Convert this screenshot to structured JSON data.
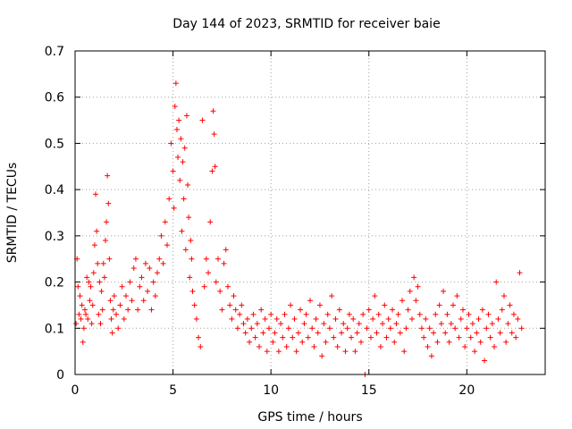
{
  "chart_data": {
    "type": "scatter",
    "title": "Day 144 of 2023, SRMTID for receiver baie",
    "xlabel": "GPS time / hours",
    "ylabel": "SRMTID / TECUs",
    "xlim": [
      0,
      24
    ],
    "ylim": [
      0,
      0.7
    ],
    "xticks": [
      0,
      5,
      10,
      15,
      20
    ],
    "yticks": [
      0,
      0.1,
      0.2,
      0.3,
      0.4,
      0.5,
      0.6,
      0.7
    ],
    "xtick_labels": [
      "0",
      "5",
      "10",
      "15",
      "20"
    ],
    "ytick_labels": [
      "0",
      "0.1",
      "0.2",
      "0.3",
      "0.4",
      "0.5",
      "0.6",
      "0.7"
    ],
    "grid": true,
    "marker": "+",
    "color": "#ff0000",
    "series": [
      {
        "name": "SRMTID",
        "points": [
          [
            0.05,
            0.11
          ],
          [
            0.1,
            0.25
          ],
          [
            0.15,
            0.19
          ],
          [
            0.2,
            0.13
          ],
          [
            0.25,
            0.17
          ],
          [
            0.3,
            0.12
          ],
          [
            0.35,
            0.15
          ],
          [
            0.4,
            0.07
          ],
          [
            0.45,
            0.1
          ],
          [
            0.5,
            0.14
          ],
          [
            0.55,
            0.13
          ],
          [
            0.6,
            0.21
          ],
          [
            0.65,
            0.12
          ],
          [
            0.7,
            0.2
          ],
          [
            0.75,
            0.16
          ],
          [
            0.8,
            0.19
          ],
          [
            0.85,
            0.11
          ],
          [
            0.9,
            0.15
          ],
          [
            0.95,
            0.22
          ],
          [
            1.0,
            0.28
          ],
          [
            1.05,
            0.39
          ],
          [
            1.1,
            0.31
          ],
          [
            1.15,
            0.24
          ],
          [
            1.2,
            0.13
          ],
          [
            1.25,
            0.2
          ],
          [
            1.3,
            0.11
          ],
          [
            1.35,
            0.18
          ],
          [
            1.4,
            0.14
          ],
          [
            1.45,
            0.24
          ],
          [
            1.5,
            0.21
          ],
          [
            1.55,
            0.29
          ],
          [
            1.6,
            0.33
          ],
          [
            1.65,
            0.43
          ],
          [
            1.7,
            0.37
          ],
          [
            1.75,
            0.25
          ],
          [
            1.8,
            0.16
          ],
          [
            1.85,
            0.12
          ],
          [
            1.9,
            0.09
          ],
          [
            1.95,
            0.14
          ],
          [
            2.0,
            0.17
          ],
          [
            2.1,
            0.13
          ],
          [
            2.2,
            0.1
          ],
          [
            2.3,
            0.15
          ],
          [
            2.4,
            0.19
          ],
          [
            2.5,
            0.12
          ],
          [
            2.6,
            0.17
          ],
          [
            2.7,
            0.14
          ],
          [
            2.8,
            0.2
          ],
          [
            2.9,
            0.16
          ],
          [
            3.0,
            0.23
          ],
          [
            3.1,
            0.25
          ],
          [
            3.2,
            0.14
          ],
          [
            3.3,
            0.19
          ],
          [
            3.4,
            0.21
          ],
          [
            3.5,
            0.16
          ],
          [
            3.6,
            0.24
          ],
          [
            3.7,
            0.18
          ],
          [
            3.8,
            0.23
          ],
          [
            3.9,
            0.14
          ],
          [
            4.0,
            0.2
          ],
          [
            4.1,
            0.17
          ],
          [
            4.2,
            0.22
          ],
          [
            4.3,
            0.25
          ],
          [
            4.4,
            0.3
          ],
          [
            4.5,
            0.24
          ],
          [
            4.6,
            0.33
          ],
          [
            4.7,
            0.28
          ],
          [
            4.8,
            0.38
          ],
          [
            4.9,
            0.5
          ],
          [
            5.0,
            0.44
          ],
          [
            5.05,
            0.36
          ],
          [
            5.1,
            0.58
          ],
          [
            5.15,
            0.63
          ],
          [
            5.2,
            0.53
          ],
          [
            5.25,
            0.47
          ],
          [
            5.3,
            0.55
          ],
          [
            5.35,
            0.42
          ],
          [
            5.4,
            0.51
          ],
          [
            5.45,
            0.31
          ],
          [
            5.5,
            0.46
          ],
          [
            5.55,
            0.38
          ],
          [
            5.6,
            0.49
          ],
          [
            5.65,
            0.27
          ],
          [
            5.7,
            0.56
          ],
          [
            5.75,
            0.41
          ],
          [
            5.8,
            0.34
          ],
          [
            5.85,
            0.21
          ],
          [
            5.9,
            0.29
          ],
          [
            5.95,
            0.25
          ],
          [
            6.0,
            0.18
          ],
          [
            6.1,
            0.15
          ],
          [
            6.2,
            0.12
          ],
          [
            6.3,
            0.08
          ],
          [
            6.4,
            0.06
          ],
          [
            6.5,
            0.55
          ],
          [
            6.6,
            0.19
          ],
          [
            6.7,
            0.25
          ],
          [
            6.8,
            0.22
          ],
          [
            6.9,
            0.33
          ],
          [
            7.0,
            0.44
          ],
          [
            7.05,
            0.57
          ],
          [
            7.1,
            0.52
          ],
          [
            7.15,
            0.45
          ],
          [
            7.2,
            0.2
          ],
          [
            7.3,
            0.25
          ],
          [
            7.4,
            0.18
          ],
          [
            7.5,
            0.14
          ],
          [
            7.6,
            0.24
          ],
          [
            7.7,
            0.27
          ],
          [
            7.8,
            0.19
          ],
          [
            7.9,
            0.15
          ],
          [
            8.0,
            0.12
          ],
          [
            8.1,
            0.17
          ],
          [
            8.2,
            0.14
          ],
          [
            8.3,
            0.1
          ],
          [
            8.4,
            0.13
          ],
          [
            8.5,
            0.15
          ],
          [
            8.6,
            0.11
          ],
          [
            8.7,
            0.09
          ],
          [
            8.8,
            0.12
          ],
          [
            8.9,
            0.07
          ],
          [
            9.0,
            0.1
          ],
          [
            9.1,
            0.13
          ],
          [
            9.2,
            0.08
          ],
          [
            9.3,
            0.11
          ],
          [
            9.4,
            0.06
          ],
          [
            9.5,
            0.14
          ],
          [
            9.6,
            0.09
          ],
          [
            9.7,
            0.12
          ],
          [
            9.8,
            0.05
          ],
          [
            9.9,
            0.1
          ],
          [
            10.0,
            0.13
          ],
          [
            10.1,
            0.07
          ],
          [
            10.2,
            0.09
          ],
          [
            10.3,
            0.12
          ],
          [
            10.4,
            0.05
          ],
          [
            10.5,
            0.11
          ],
          [
            10.6,
            0.08
          ],
          [
            10.7,
            0.13
          ],
          [
            10.8,
            0.06
          ],
          [
            10.9,
            0.1
          ],
          [
            11.0,
            0.15
          ],
          [
            11.1,
            0.08
          ],
          [
            11.2,
            0.12
          ],
          [
            11.3,
            0.05
          ],
          [
            11.4,
            0.09
          ],
          [
            11.5,
            0.14
          ],
          [
            11.6,
            0.07
          ],
          [
            11.7,
            0.11
          ],
          [
            11.8,
            0.13
          ],
          [
            11.9,
            0.08
          ],
          [
            12.0,
            0.16
          ],
          [
            12.1,
            0.1
          ],
          [
            12.2,
            0.06
          ],
          [
            12.3,
            0.12
          ],
          [
            12.4,
            0.09
          ],
          [
            12.5,
            0.15
          ],
          [
            12.6,
            0.04
          ],
          [
            12.7,
            0.11
          ],
          [
            12.8,
            0.07
          ],
          [
            12.9,
            0.13
          ],
          [
            13.0,
            0.1
          ],
          [
            13.1,
            0.17
          ],
          [
            13.2,
            0.08
          ],
          [
            13.3,
            0.12
          ],
          [
            13.4,
            0.06
          ],
          [
            13.5,
            0.14
          ],
          [
            13.6,
            0.09
          ],
          [
            13.7,
            0.11
          ],
          [
            13.8,
            0.05
          ],
          [
            13.9,
            0.1
          ],
          [
            14.0,
            0.13
          ],
          [
            14.1,
            0.08
          ],
          [
            14.2,
            0.12
          ],
          [
            14.3,
            0.05
          ],
          [
            14.4,
            0.09
          ],
          [
            14.5,
            0.11
          ],
          [
            14.6,
            0.07
          ],
          [
            14.7,
            0.13
          ],
          [
            14.8,
            0.0
          ],
          [
            14.9,
            0.1
          ],
          [
            15.0,
            0.14
          ],
          [
            15.1,
            0.08
          ],
          [
            15.2,
            0.12
          ],
          [
            15.3,
            0.17
          ],
          [
            15.4,
            0.09
          ],
          [
            15.5,
            0.13
          ],
          [
            15.6,
            0.06
          ],
          [
            15.7,
            0.11
          ],
          [
            15.8,
            0.15
          ],
          [
            15.9,
            0.08
          ],
          [
            16.0,
            0.12
          ],
          [
            16.1,
            0.1
          ],
          [
            16.2,
            0.14
          ],
          [
            16.3,
            0.07
          ],
          [
            16.4,
            0.11
          ],
          [
            16.5,
            0.13
          ],
          [
            16.6,
            0.09
          ],
          [
            16.7,
            0.16
          ],
          [
            16.8,
            0.05
          ],
          [
            16.9,
            0.1
          ],
          [
            17.0,
            0.14
          ],
          [
            17.1,
            0.18
          ],
          [
            17.2,
            0.12
          ],
          [
            17.3,
            0.21
          ],
          [
            17.4,
            0.16
          ],
          [
            17.5,
            0.19
          ],
          [
            17.6,
            0.13
          ],
          [
            17.7,
            0.1
          ],
          [
            17.8,
            0.08
          ],
          [
            17.9,
            0.12
          ],
          [
            18.0,
            0.06
          ],
          [
            18.1,
            0.1
          ],
          [
            18.2,
            0.04
          ],
          [
            18.3,
            0.09
          ],
          [
            18.4,
            0.13
          ],
          [
            18.5,
            0.07
          ],
          [
            18.6,
            0.15
          ],
          [
            18.7,
            0.11
          ],
          [
            18.8,
            0.18
          ],
          [
            18.9,
            0.09
          ],
          [
            19.0,
            0.13
          ],
          [
            19.1,
            0.07
          ],
          [
            19.2,
            0.11
          ],
          [
            19.3,
            0.15
          ],
          [
            19.4,
            0.1
          ],
          [
            19.5,
            0.17
          ],
          [
            19.6,
            0.08
          ],
          [
            19.7,
            0.12
          ],
          [
            19.8,
            0.14
          ],
          [
            19.9,
            0.06
          ],
          [
            20.0,
            0.1
          ],
          [
            20.1,
            0.13
          ],
          [
            20.2,
            0.08
          ],
          [
            20.3,
            0.11
          ],
          [
            20.4,
            0.05
          ],
          [
            20.5,
            0.09
          ],
          [
            20.6,
            0.12
          ],
          [
            20.7,
            0.07
          ],
          [
            20.8,
            0.14
          ],
          [
            20.9,
            0.03
          ],
          [
            21.0,
            0.1
          ],
          [
            21.1,
            0.13
          ],
          [
            21.2,
            0.08
          ],
          [
            21.3,
            0.11
          ],
          [
            21.4,
            0.06
          ],
          [
            21.5,
            0.2
          ],
          [
            21.6,
            0.12
          ],
          [
            21.7,
            0.09
          ],
          [
            21.8,
            0.14
          ],
          [
            21.9,
            0.17
          ],
          [
            22.0,
            0.07
          ],
          [
            22.1,
            0.11
          ],
          [
            22.2,
            0.15
          ],
          [
            22.3,
            0.09
          ],
          [
            22.4,
            0.13
          ],
          [
            22.5,
            0.08
          ],
          [
            22.6,
            0.12
          ],
          [
            22.7,
            0.22
          ],
          [
            22.8,
            0.1
          ]
        ]
      }
    ]
  }
}
